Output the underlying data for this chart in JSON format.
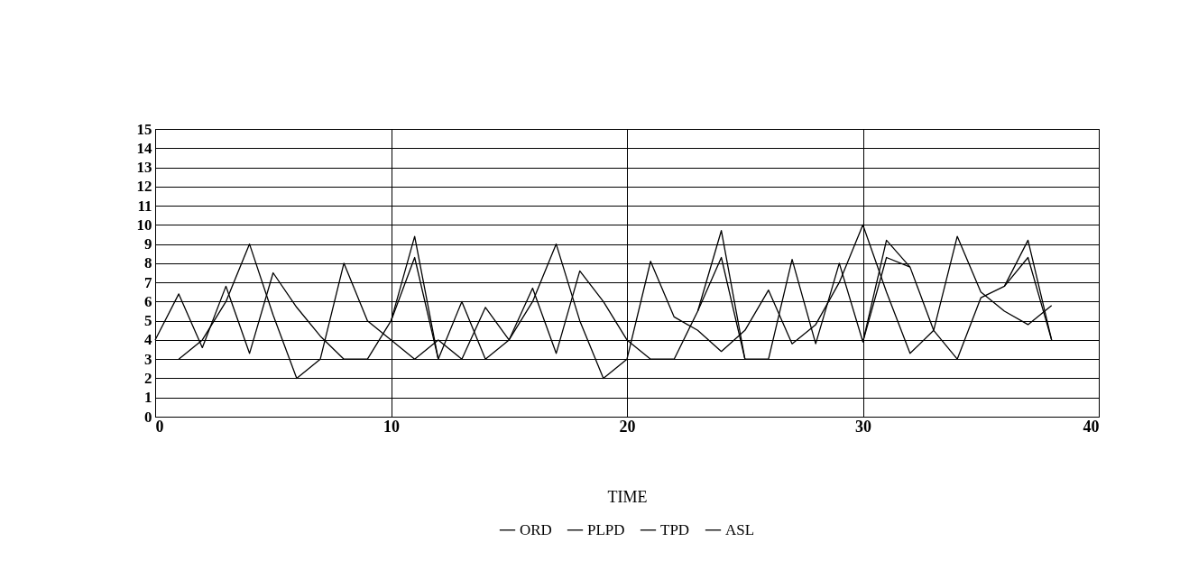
{
  "chart_data": {
    "type": "line",
    "xlabel": "TIME",
    "x": [
      0,
      1,
      2,
      3,
      4,
      5,
      6,
      7,
      8,
      9,
      10,
      11,
      12,
      13,
      14,
      15,
      16,
      17,
      18,
      19,
      20,
      21,
      22,
      23,
      24,
      25,
      26,
      27,
      28,
      29,
      30,
      31,
      32,
      33,
      34,
      35,
      36,
      37,
      38
    ],
    "series": [
      {
        "name": "ORD",
        "color": "#000000",
        "values": [
          4,
          6.4,
          3.6,
          6.8,
          3.3,
          7.5,
          5.7,
          4.2,
          3,
          3,
          5,
          9.4,
          3,
          6,
          3,
          4,
          6.7,
          3.3,
          7.6,
          6,
          4,
          3,
          3,
          5.5,
          9.7,
          3,
          3,
          8.2,
          3.8,
          8,
          3.9,
          9.2,
          7.8,
          4.5,
          3,
          6.2,
          6.8,
          9.2,
          4
        ]
      },
      {
        "name": "PLPD",
        "color": "#000000",
        "values": [
          null,
          3,
          4,
          6,
          9,
          5.3,
          2,
          3,
          8,
          5,
          4,
          3,
          4,
          3,
          5.7,
          4,
          6,
          9,
          5,
          2,
          3,
          8.1,
          5.2,
          4.5,
          3.4,
          4.5,
          6.6,
          3.8,
          4.8,
          7,
          10,
          6.5,
          3.3,
          4.5,
          9.4,
          6.5,
          5.5,
          4.8,
          5.8
        ]
      },
      {
        "name": "TPD",
        "color": "#000000",
        "values": [
          null,
          null,
          null,
          null,
          null,
          null,
          null,
          null,
          null,
          null,
          5,
          8.3,
          3,
          null,
          null,
          null,
          null,
          null,
          null,
          null,
          null,
          null,
          null,
          5.5,
          8.3,
          3,
          null,
          null,
          null,
          null,
          null,
          null,
          null,
          null,
          null,
          null,
          6.8,
          8.3,
          4
        ]
      },
      {
        "name": "ASL",
        "color": "#000000",
        "values": [
          null,
          null,
          null,
          null,
          null,
          null,
          null,
          null,
          null,
          null,
          null,
          null,
          null,
          null,
          null,
          null,
          null,
          null,
          null,
          null,
          null,
          null,
          null,
          null,
          null,
          null,
          null,
          null,
          null,
          null,
          3.9,
          8.3,
          7.8,
          null,
          null,
          null,
          null,
          null,
          null
        ]
      }
    ],
    "xlim": [
      0,
      40
    ],
    "xticks": [
      0,
      10,
      20,
      30,
      40
    ],
    "ylim": [
      0,
      15
    ],
    "yticks": [
      0,
      1,
      2,
      3,
      4,
      5,
      6,
      7,
      8,
      9,
      10,
      11,
      12,
      13,
      14,
      15
    ],
    "grid": true,
    "legend": "bottom",
    "marker": "none",
    "line_style": "solid"
  }
}
